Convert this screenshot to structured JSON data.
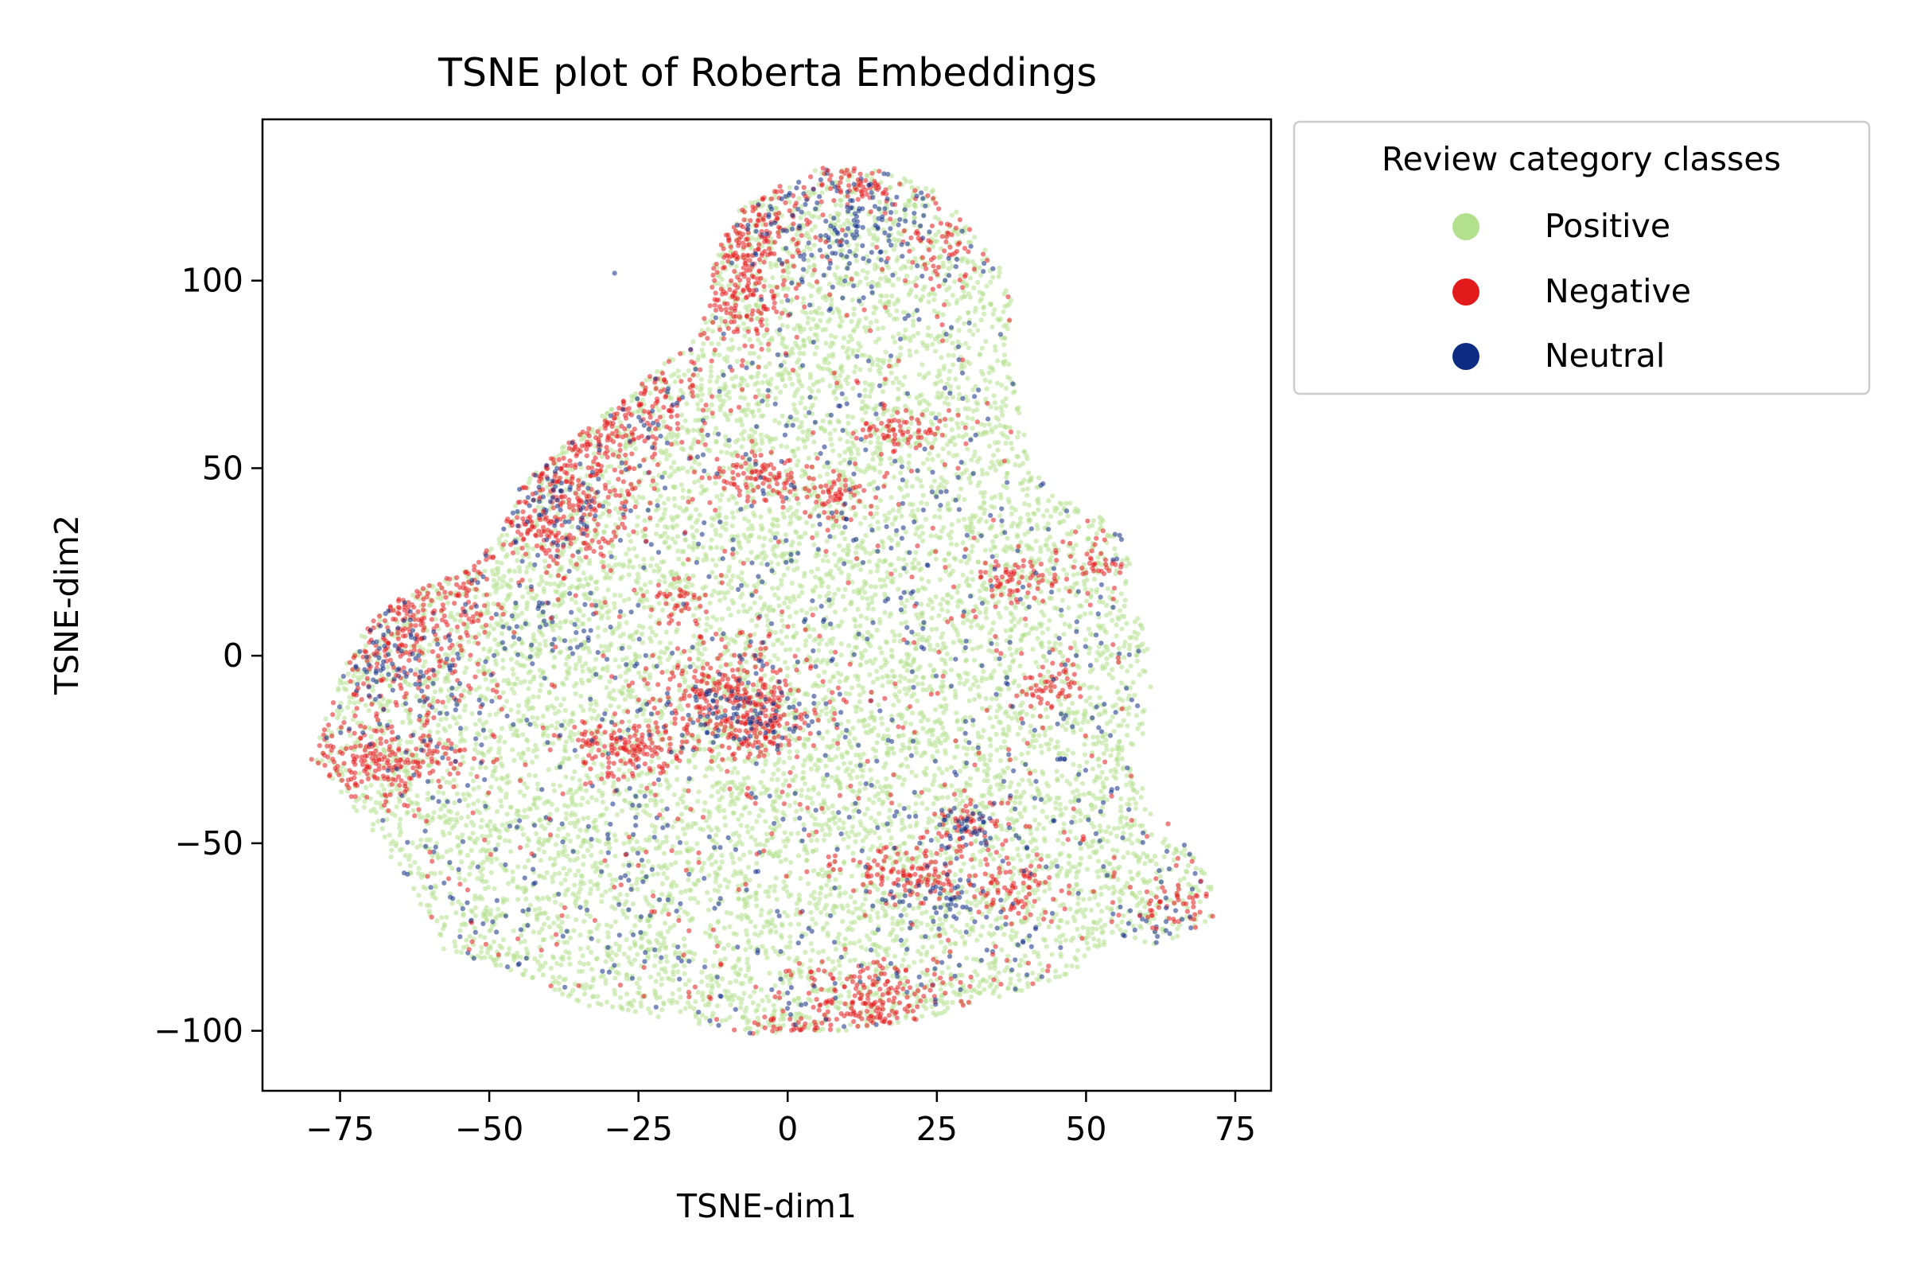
{
  "chart_data": {
    "type": "scatter",
    "title": "TSNE plot of Roberta Embeddings",
    "xlabel": "TSNE-dim1",
    "ylabel": "TSNE-dim2",
    "xlim": [
      -88,
      81
    ],
    "ylim": [
      -116,
      143
    ],
    "xticks": [
      -75,
      -50,
      -25,
      0,
      25,
      50,
      75
    ],
    "xtick_labels": [
      "−75",
      "−50",
      "−25",
      "0",
      "25",
      "50",
      "75"
    ],
    "yticks": [
      -100,
      -50,
      0,
      50,
      100
    ],
    "ytick_labels": [
      "−100",
      "−50",
      "0",
      "50",
      "100"
    ],
    "grid": false,
    "legend": {
      "title": "Review category classes",
      "placement": "outside upper right",
      "entries": [
        "Positive",
        "Negative",
        "Neutral"
      ]
    },
    "series": [
      {
        "name": "Positive",
        "color": "#b3e08c",
        "alpha": 0.55
      },
      {
        "name": "Negative",
        "color": "#e31a1c",
        "alpha": 0.55
      },
      {
        "name": "Neutral",
        "color": "#0c2c84",
        "alpha": 0.55
      }
    ],
    "region_outline": [
      [
        -80,
        -28
      ],
      [
        -76,
        -10
      ],
      [
        -72,
        5
      ],
      [
        -66,
        15
      ],
      [
        -55,
        22
      ],
      [
        -48,
        32
      ],
      [
        -45,
        45
      ],
      [
        -36,
        58
      ],
      [
        -28,
        68
      ],
      [
        -22,
        76
      ],
      [
        -15,
        86
      ],
      [
        -12,
        106
      ],
      [
        -9,
        118
      ],
      [
        -2,
        125
      ],
      [
        5,
        130
      ],
      [
        14,
        130
      ],
      [
        25,
        125
      ],
      [
        30,
        115
      ],
      [
        34,
        107
      ],
      [
        38,
        98
      ],
      [
        37,
        80
      ],
      [
        39,
        64
      ],
      [
        41,
        50
      ],
      [
        45,
        42
      ],
      [
        52,
        38
      ],
      [
        57,
        30
      ],
      [
        58,
        15
      ],
      [
        60,
        5
      ],
      [
        61,
        -8
      ],
      [
        59,
        -25
      ],
      [
        61,
        -40
      ],
      [
        65,
        -47
      ],
      [
        70,
        -55
      ],
      [
        73,
        -70
      ],
      [
        62,
        -77
      ],
      [
        55,
        -75
      ],
      [
        47,
        -85
      ],
      [
        35,
        -92
      ],
      [
        22,
        -97
      ],
      [
        10,
        -100
      ],
      [
        -5,
        -101
      ],
      [
        -20,
        -97
      ],
      [
        -35,
        -93
      ],
      [
        -45,
        -85
      ],
      [
        -58,
        -78
      ],
      [
        -62,
        -65
      ],
      [
        -68,
        -50
      ],
      [
        -74,
        -38
      ]
    ],
    "negative_clusters": [
      [
        -68,
        -28,
        7,
        5,
        220
      ],
      [
        -65,
        5,
        8,
        12,
        360
      ],
      [
        -58,
        20,
        6,
        5,
        90
      ],
      [
        -40,
        45,
        9,
        9,
        380
      ],
      [
        -32,
        62,
        7,
        6,
        200
      ],
      [
        -22,
        72,
        5,
        5,
        70
      ],
      [
        -8,
        112,
        6,
        7,
        220
      ],
      [
        -7,
        95,
        4,
        7,
        130
      ],
      [
        12,
        125,
        5,
        3,
        70
      ],
      [
        26,
        110,
        4,
        4,
        50
      ],
      [
        -26,
        -25,
        5,
        4,
        160
      ],
      [
        -9,
        -10,
        7,
        7,
        280
      ],
      [
        -5,
        -20,
        4,
        4,
        100
      ],
      [
        -5,
        48,
        4,
        3,
        90
      ],
      [
        8,
        42,
        4,
        3,
        60
      ],
      [
        20,
        60,
        4,
        3,
        70
      ],
      [
        38,
        20,
        4,
        3,
        70
      ],
      [
        45,
        -8,
        3,
        3,
        50
      ],
      [
        30,
        -45,
        3,
        3,
        60
      ],
      [
        20,
        -58,
        6,
        4,
        120
      ],
      [
        37,
        -62,
        4,
        4,
        80
      ],
      [
        15,
        -92,
        7,
        5,
        200
      ],
      [
        0,
        -100,
        4,
        2,
        50
      ],
      [
        65,
        -66,
        3,
        3,
        45
      ],
      [
        -40,
        32,
        5,
        4,
        70
      ],
      [
        -18,
        14,
        3,
        3,
        40
      ],
      [
        52,
        25,
        3,
        3,
        35
      ]
    ],
    "neutral_clusters": [
      [
        -65,
        -5,
        6,
        8,
        90
      ],
      [
        -40,
        40,
        7,
        6,
        80
      ],
      [
        -8,
        -15,
        6,
        5,
        90
      ],
      [
        30,
        -45,
        3,
        3,
        40
      ],
      [
        10,
        115,
        8,
        6,
        120
      ],
      [
        -38,
        8,
        6,
        5,
        40
      ],
      [
        25,
        -65,
        4,
        3,
        40
      ],
      [
        62,
        -72,
        3,
        3,
        25
      ]
    ],
    "outliers": [
      {
        "series": "Neutral",
        "x": -29,
        "y": 102
      }
    ]
  }
}
